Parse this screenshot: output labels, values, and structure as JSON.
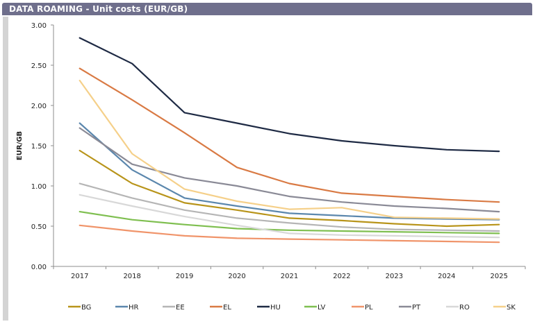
{
  "header": {
    "title": "DATA ROAMING - Unit costs (EUR/GB)"
  },
  "chart_data": {
    "type": "line",
    "title": "DATA ROAMING - Unit costs (EUR/GB)",
    "xlabel": "",
    "ylabel": "EUR/GB",
    "ylim": [
      0,
      3
    ],
    "y_ticks": [
      "0.00",
      "0.50",
      "1.00",
      "1.50",
      "2.00",
      "2.50",
      "3.00"
    ],
    "y_tick_values": [
      0,
      0.5,
      1,
      1.5,
      2,
      2.5,
      3
    ],
    "categories": [
      "2017",
      "2018",
      "2019",
      "2020",
      "2021",
      "2022",
      "2023",
      "2024",
      "2025"
    ],
    "grid": false,
    "legend_position": "bottom",
    "series": [
      {
        "name": "BG",
        "color": "#b8941a",
        "values": [
          1.44,
          1.03,
          0.79,
          0.7,
          0.6,
          0.57,
          0.53,
          0.5,
          0.52
        ]
      },
      {
        "name": "HR",
        "color": "#5b87ad",
        "values": [
          1.78,
          1.2,
          0.85,
          0.75,
          0.66,
          0.63,
          0.6,
          0.59,
          0.58
        ]
      },
      {
        "name": "EE",
        "color": "#b5b5b5",
        "values": [
          1.03,
          0.85,
          0.7,
          0.6,
          0.54,
          0.49,
          0.46,
          0.45,
          0.44
        ]
      },
      {
        "name": "EL",
        "color": "#d97a44",
        "values": [
          2.46,
          2.07,
          1.66,
          1.23,
          1.03,
          0.91,
          0.87,
          0.83,
          0.8
        ]
      },
      {
        "name": "HU",
        "color": "#1e2a44",
        "values": [
          2.84,
          2.52,
          1.91,
          1.78,
          1.65,
          1.56,
          1.5,
          1.45,
          1.43
        ]
      },
      {
        "name": "LV",
        "color": "#7fbf50",
        "values": [
          0.68,
          0.58,
          0.52,
          0.47,
          0.45,
          0.44,
          0.43,
          0.42,
          0.41
        ]
      },
      {
        "name": "PL",
        "color": "#f0946a",
        "values": [
          0.51,
          0.44,
          0.38,
          0.35,
          0.34,
          0.33,
          0.32,
          0.31,
          0.3
        ]
      },
      {
        "name": "PT",
        "color": "#8a8a96",
        "values": [
          1.72,
          1.27,
          1.1,
          1.0,
          0.87,
          0.8,
          0.75,
          0.72,
          0.68
        ]
      },
      {
        "name": "RO",
        "color": "#d8d8d8",
        "values": [
          0.89,
          0.75,
          0.62,
          0.51,
          0.41,
          0.39,
          0.38,
          0.37,
          0.36
        ]
      },
      {
        "name": "SK",
        "color": "#f5d08a",
        "values": [
          2.31,
          1.4,
          0.96,
          0.81,
          0.71,
          0.73,
          0.61,
          0.6,
          0.59
        ]
      }
    ]
  }
}
